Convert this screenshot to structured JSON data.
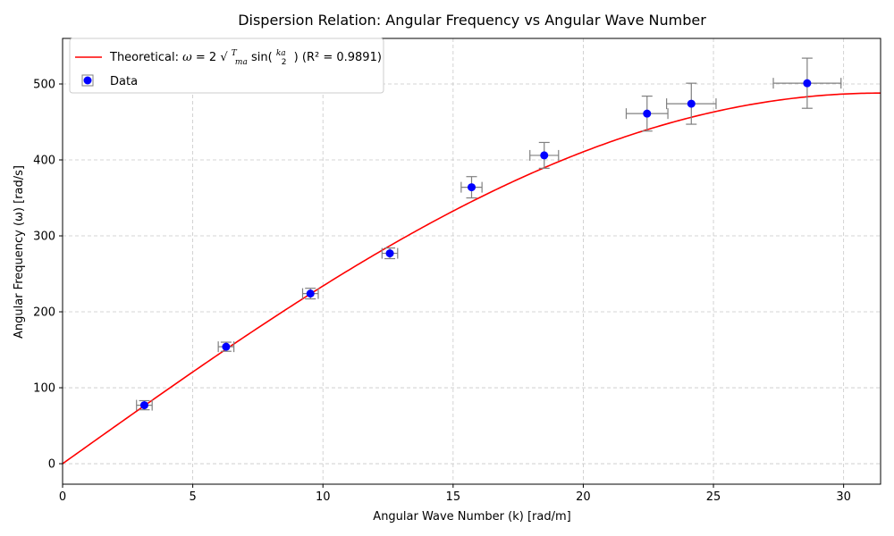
{
  "chart_data": {
    "type": "scatter",
    "title": "Dispersion Relation: Angular Frequency vs Angular Wave Number",
    "xlabel": "Angular Wave Number (k) [rad/m]",
    "ylabel": "Angular Frequency (ω) [rad/s]",
    "xlim": [
      0,
      31.42
    ],
    "ylim": [
      -27,
      560
    ],
    "xticks": [
      0,
      5,
      10,
      15,
      20,
      25,
      30
    ],
    "yticks": [
      0,
      100,
      200,
      300,
      400,
      500
    ],
    "grid": true,
    "legend_position": "top-left",
    "series": [
      {
        "name": "Theoretical: ω = 2√(T/ma) sin(ka/2) (R² = 0.9891)",
        "kind": "line",
        "color": "#ff0000",
        "model": {
          "amplitude": 488,
          "a": 0.1
        }
      },
      {
        "name": "Data",
        "kind": "scatter",
        "color": "#0000ff",
        "errorbar_color": "#808080",
        "points": [
          {
            "x": 3.14,
            "y": 77,
            "xerr": 0.3,
            "yerr": 6
          },
          {
            "x": 6.28,
            "y": 154,
            "xerr": 0.3,
            "yerr": 6
          },
          {
            "x": 9.52,
            "y": 224,
            "xerr": 0.3,
            "yerr": 7
          },
          {
            "x": 12.57,
            "y": 277,
            "xerr": 0.3,
            "yerr": 7
          },
          {
            "x": 15.71,
            "y": 364,
            "xerr": 0.4,
            "yerr": 14
          },
          {
            "x": 18.5,
            "y": 406,
            "xerr": 0.55,
            "yerr": 17
          },
          {
            "x": 22.45,
            "y": 461,
            "xerr": 0.8,
            "yerr": 23
          },
          {
            "x": 24.15,
            "y": 474,
            "xerr": 0.95,
            "yerr": 27
          },
          {
            "x": 28.6,
            "y": 501,
            "xerr": 1.3,
            "yerr": 33
          }
        ]
      }
    ],
    "legend": {
      "line_label_prefix": "Theoretical: ",
      "line_label_suffix": " (R² = 0.9891)",
      "scatter_label": "Data"
    }
  }
}
